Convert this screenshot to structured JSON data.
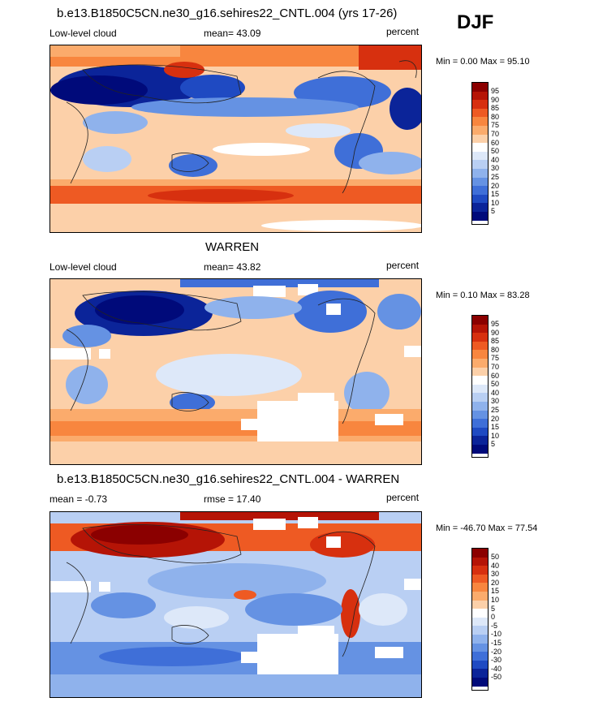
{
  "season": "DJF",
  "panels": [
    {
      "title": "b.e13.B1850C5CN.ne30_g16.sehires22_CNTL.004 (yrs 17-26)",
      "left_label": "Low-level cloud",
      "center_label": "mean=  43.09",
      "right_label": "percent",
      "minmax": "Min =   0.00 Max =  95.10",
      "colorbar_labels": [
        "95",
        "90",
        "85",
        "80",
        "75",
        "70",
        "60",
        "50",
        "40",
        "30",
        "25",
        "20",
        "15",
        "10",
        "5"
      ]
    },
    {
      "title": "WARREN",
      "left_label": "Low-level cloud",
      "center_label": "mean=  43.82",
      "right_label": "percent",
      "minmax": "Min =   0.10 Max =  83.28",
      "colorbar_labels": [
        "95",
        "90",
        "85",
        "80",
        "75",
        "70",
        "60",
        "50",
        "40",
        "30",
        "25",
        "20",
        "15",
        "10",
        "5"
      ]
    },
    {
      "title": "b.e13.B1850C5CN.ne30_g16.sehires22_CNTL.004 - WARREN",
      "left_label": "mean =  -0.73",
      "center_label": "rmse =  17.40",
      "right_label": "percent",
      "minmax": "Min = -46.70 Max =  77.54",
      "colorbar_labels": [
        "50",
        "40",
        "30",
        "20",
        "15",
        "10",
        "5",
        "0",
        "-5",
        "-10",
        "-15",
        "-20",
        "-30",
        "-40",
        "-50"
      ]
    }
  ],
  "colors": {
    "scale": [
      "#8b0000",
      "#b51406",
      "#d7300f",
      "#ee5a23",
      "#f8863f",
      "#fbab6c",
      "#fcd0a9",
      "#ffffff",
      "#dde8f9",
      "#b9cff3",
      "#8fb2ec",
      "#6592e3",
      "#3f6fd8",
      "#1f4ac2",
      "#0b2499",
      "#000a7a"
    ]
  }
}
